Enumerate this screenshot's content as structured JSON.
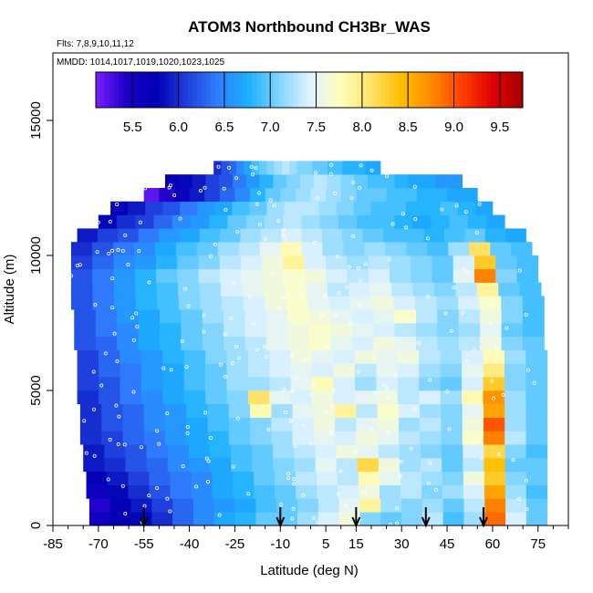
{
  "chart_data": {
    "type": "heatmap",
    "title": "ATOM3 Northbound CH3Br_WAS",
    "subtitle_flights": "Flts: 7,8,9,10,11,12",
    "subtitle_dates": "MMDD: 1014,1017,1019,1020,1023,1025",
    "xlabel": "Latitude (deg N)",
    "ylabel": "Altitude (m)",
    "xlim": [
      -85,
      85
    ],
    "ylim": [
      0,
      17500
    ],
    "x_ticks": [
      -85,
      -70,
      -55,
      -40,
      -25,
      -10,
      5,
      15,
      30,
      45,
      60,
      75
    ],
    "x_tick_labels": [
      "-85",
      "-70",
      "-55",
      "-40",
      "-25",
      "-10",
      "5",
      "15",
      "30",
      "45",
      "60",
      "75"
    ],
    "y_ticks": [
      0,
      5000,
      10000,
      15000
    ],
    "y_tick_labels": [
      "0",
      "5000",
      "10000",
      "15000"
    ],
    "colorbar": {
      "min": 5.1,
      "max": 9.75,
      "ticks": [
        5.5,
        6.0,
        6.5,
        7.0,
        7.5,
        8.0,
        8.5,
        9.0,
        9.5
      ],
      "tick_labels": [
        "5.5",
        "6.0",
        "6.5",
        "7.0",
        "7.5",
        "8.0",
        "8.5",
        "9.0",
        "9.5"
      ],
      "colors": [
        "#7a1fff",
        "#1a00c8",
        "#0000b4",
        "#1f3fdc",
        "#2f7fff",
        "#1ab0ff",
        "#7fd4ff",
        "#dff2ff",
        "#ffffc0",
        "#ffe36a",
        "#ffbf00",
        "#ff8c00",
        "#ff4000",
        "#e00000",
        "#a50000"
      ]
    },
    "altitude_layers": [
      {
        "alt": 0,
        "lat_min": -73,
        "lat_max": 78,
        "values": [
          5.6,
          5.7,
          5.8,
          6.0,
          6.3,
          6.5,
          6.7,
          6.8,
          7.0,
          7.0,
          7.2,
          7.4,
          7.6,
          7.1,
          7.0,
          7.1,
          7.3,
          6.9,
          7.2,
          8.9,
          7.4,
          7.0
        ]
      },
      {
        "alt": 500,
        "lat_min": -73,
        "lat_max": 78,
        "values": [
          5.4,
          5.7,
          5.9,
          6.1,
          6.3,
          6.5,
          6.6,
          6.7,
          6.9,
          7.0,
          7.1,
          7.3,
          7.5,
          7.9,
          7.2,
          7.1,
          7.2,
          7.0,
          7.3,
          8.8,
          7.3,
          7.0
        ]
      },
      {
        "alt": 1000,
        "lat_min": -74,
        "lat_max": 78,
        "values": [
          5.6,
          5.8,
          6.0,
          6.2,
          6.4,
          6.5,
          6.7,
          6.8,
          6.9,
          7.0,
          7.2,
          7.3,
          7.4,
          7.6,
          7.2,
          7.3,
          7.1,
          7.2,
          7.4,
          8.6,
          7.2,
          6.9
        ]
      },
      {
        "alt": 1500,
        "lat_min": -74,
        "lat_max": 78,
        "values": [
          5.7,
          5.9,
          6.1,
          6.3,
          6.4,
          6.5,
          6.7,
          6.8,
          7.0,
          7.1,
          7.3,
          7.4,
          7.3,
          7.8,
          7.5,
          7.3,
          7.2,
          7.1,
          7.6,
          8.3,
          7.1,
          7.0
        ]
      },
      {
        "alt": 2000,
        "lat_min": -75,
        "lat_max": 78,
        "values": [
          5.9,
          6.0,
          6.2,
          6.3,
          6.5,
          6.6,
          6.7,
          6.9,
          7.0,
          7.1,
          7.2,
          7.5,
          7.3,
          8.2,
          7.6,
          7.2,
          7.3,
          7.0,
          7.3,
          8.4,
          7.0,
          7.0
        ]
      },
      {
        "alt": 2500,
        "lat_min": -75,
        "lat_max": 78,
        "values": [
          5.9,
          6.1,
          6.2,
          6.4,
          6.5,
          6.7,
          6.8,
          6.9,
          7.0,
          7.2,
          7.3,
          7.4,
          7.6,
          7.5,
          7.3,
          7.2,
          7.1,
          7.0,
          7.4,
          8.2,
          7.1,
          6.9
        ]
      },
      {
        "alt": 3000,
        "lat_min": -76,
        "lat_max": 78,
        "values": [
          6.0,
          6.1,
          6.3,
          6.4,
          6.6,
          6.7,
          6.8,
          7.0,
          7.1,
          7.2,
          7.4,
          7.5,
          7.4,
          7.6,
          7.5,
          7.3,
          7.2,
          7.1,
          7.7,
          8.8,
          7.3,
          7.0
        ]
      },
      {
        "alt": 3500,
        "lat_min": -76,
        "lat_max": 78,
        "values": [
          6.0,
          6.2,
          6.3,
          6.5,
          6.6,
          6.7,
          6.9,
          7.0,
          7.1,
          7.3,
          7.4,
          7.6,
          7.3,
          7.5,
          7.6,
          7.2,
          7.3,
          7.1,
          7.6,
          9.0,
          7.2,
          7.0
        ]
      },
      {
        "alt": 4000,
        "lat_min": -76,
        "lat_max": 78,
        "values": [
          6.0,
          6.2,
          6.3,
          6.5,
          6.6,
          6.8,
          6.9,
          7.1,
          7.8,
          7.2,
          7.5,
          7.6,
          7.9,
          7.3,
          7.7,
          7.4,
          7.2,
          7.1,
          7.5,
          8.6,
          7.2,
          7.0
        ]
      },
      {
        "alt": 4500,
        "lat_min": -77,
        "lat_max": 78,
        "values": [
          6.0,
          6.2,
          6.4,
          6.5,
          6.7,
          6.8,
          7.0,
          7.1,
          8.1,
          7.5,
          7.4,
          7.6,
          7.4,
          7.5,
          7.6,
          7.3,
          7.4,
          7.2,
          7.8,
          8.7,
          7.2,
          7.0
        ]
      },
      {
        "alt": 5000,
        "lat_min": -77,
        "lat_max": 78,
        "values": [
          6.1,
          6.2,
          6.4,
          6.6,
          6.7,
          6.9,
          7.0,
          7.2,
          7.2,
          7.3,
          7.5,
          7.8,
          7.4,
          7.2,
          7.4,
          7.3,
          7.1,
          7.0,
          7.4,
          8.3,
          7.1,
          7.0
        ]
      },
      {
        "alt": 5500,
        "lat_min": -77,
        "lat_max": 78,
        "values": [
          6.1,
          6.3,
          6.4,
          6.6,
          6.7,
          6.9,
          7.0,
          7.2,
          7.3,
          7.4,
          7.5,
          7.4,
          7.6,
          7.3,
          7.5,
          7.4,
          7.2,
          7.1,
          7.5,
          8.0,
          7.1,
          7.0
        ]
      },
      {
        "alt": 6000,
        "lat_min": -77,
        "lat_max": 78,
        "values": [
          6.1,
          6.3,
          6.5,
          6.6,
          6.8,
          6.9,
          7.1,
          7.2,
          7.3,
          7.4,
          7.6,
          7.5,
          7.4,
          7.6,
          7.5,
          7.6,
          7.3,
          7.2,
          7.4,
          7.8,
          7.2,
          7.0
        ]
      },
      {
        "alt": 6500,
        "lat_min": -78,
        "lat_max": 77,
        "values": [
          6.2,
          6.3,
          6.5,
          6.7,
          6.8,
          7.0,
          7.1,
          7.2,
          7.3,
          7.5,
          7.6,
          7.7,
          7.5,
          7.4,
          7.6,
          7.5,
          7.3,
          7.2,
          7.3,
          7.6,
          7.1,
          7.0
        ]
      },
      {
        "alt": 7000,
        "lat_min": -78,
        "lat_max": 77,
        "values": [
          6.2,
          6.4,
          6.5,
          6.7,
          6.8,
          7.0,
          7.1,
          7.3,
          7.4,
          7.5,
          7.6,
          7.7,
          7.6,
          7.5,
          7.4,
          7.3,
          7.2,
          7.1,
          7.2,
          7.5,
          7.0,
          6.9
        ]
      },
      {
        "alt": 7500,
        "lat_min": -78,
        "lat_max": 77,
        "values": [
          6.2,
          6.4,
          6.6,
          6.7,
          6.9,
          7.0,
          7.2,
          7.3,
          7.4,
          7.5,
          7.7,
          7.6,
          7.5,
          7.4,
          7.5,
          7.7,
          7.3,
          7.1,
          7.3,
          7.6,
          7.1,
          6.9
        ]
      },
      {
        "alt": 8000,
        "lat_min": -79,
        "lat_max": 77,
        "values": [
          6.2,
          6.4,
          6.6,
          6.8,
          6.9,
          7.1,
          7.2,
          7.3,
          7.4,
          7.6,
          7.7,
          7.5,
          7.4,
          7.5,
          7.6,
          7.4,
          7.3,
          7.2,
          7.4,
          7.7,
          7.1,
          6.9
        ]
      },
      {
        "alt": 8500,
        "lat_min": -79,
        "lat_max": 76,
        "values": [
          6.2,
          6.4,
          6.6,
          6.8,
          6.9,
          7.1,
          7.2,
          7.4,
          7.5,
          7.6,
          7.7,
          7.5,
          7.3,
          7.4,
          7.5,
          7.3,
          7.2,
          7.1,
          7.3,
          7.9,
          7.0,
          6.9
        ]
      },
      {
        "alt": 9000,
        "lat_min": -79,
        "lat_max": 75,
        "values": [
          6.2,
          6.4,
          6.6,
          6.8,
          7.0,
          7.1,
          7.3,
          7.4,
          7.5,
          7.6,
          7.7,
          7.6,
          7.4,
          7.3,
          7.4,
          7.2,
          7.1,
          7.0,
          7.5,
          8.8,
          7.1,
          6.9
        ]
      },
      {
        "alt": 9500,
        "lat_min": -79,
        "lat_max": 75,
        "values": [
          6.1,
          6.3,
          6.5,
          6.6,
          6.8,
          7.0,
          7.1,
          7.3,
          7.4,
          7.6,
          7.9,
          7.4,
          7.3,
          7.2,
          7.3,
          7.2,
          7.1,
          7.0,
          7.4,
          8.3,
          7.0,
          6.9
        ]
      },
      {
        "alt": 10000,
        "lat_min": -79,
        "lat_max": 73,
        "values": [
          6.0,
          6.2,
          6.4,
          6.5,
          6.7,
          6.9,
          7.0,
          7.2,
          7.3,
          7.5,
          7.8,
          7.4,
          7.2,
          7.1,
          7.2,
          7.1,
          7.0,
          6.9,
          7.2,
          8.1,
          7.0,
          6.9
        ]
      },
      {
        "alt": 10500,
        "lat_min": -77,
        "lat_max": 71,
        "values": [
          5.9,
          6.1,
          6.2,
          6.4,
          6.6,
          6.7,
          6.9,
          7.0,
          7.2,
          7.3,
          7.4,
          7.3,
          7.2,
          7.1,
          7.0,
          6.9,
          6.9,
          6.8,
          6.9,
          7.0,
          6.8,
          6.7
        ]
      },
      {
        "alt": 11000,
        "lat_min": -70,
        "lat_max": 64,
        "values": [
          5.8,
          6.0,
          6.1,
          6.3,
          6.5,
          6.6,
          6.8,
          7.0,
          7.1,
          7.2,
          7.3,
          7.2,
          7.1,
          7.0,
          6.9,
          6.9,
          6.8,
          6.7,
          6.8,
          6.9,
          6.8,
          6.7
        ]
      },
      {
        "alt": 11500,
        "lat_min": -66,
        "lat_max": 60,
        "values": [
          5.7,
          5.9,
          6.1,
          6.2,
          6.4,
          6.6,
          6.7,
          6.9,
          7.0,
          7.2,
          7.3,
          7.3,
          7.2,
          7.1,
          7.0,
          6.9,
          6.9,
          6.8,
          6.8,
          6.9,
          6.8,
          6.7
        ]
      },
      {
        "alt": 12000,
        "lat_min": -55,
        "lat_max": 55,
        "values": [
          5.2,
          5.4,
          5.6,
          5.9,
          6.1,
          6.3,
          6.5,
          6.8,
          7.0,
          7.1,
          7.2,
          7.3,
          7.2,
          7.1,
          7.0,
          7.0,
          6.9,
          6.9,
          6.8,
          6.8,
          6.7,
          6.7
        ]
      },
      {
        "alt": 12500,
        "lat_min": -48,
        "lat_max": 50,
        "values": [
          5.7,
          5.8,
          5.9,
          6.1,
          6.2,
          6.4,
          6.6,
          6.8,
          7.0,
          7.1,
          7.2,
          7.3,
          7.2,
          7.1,
          7.0,
          6.9,
          6.9,
          6.8,
          6.7,
          6.7,
          6.6,
          6.6
        ]
      },
      {
        "alt": 13000,
        "lat_min": -32,
        "lat_max": 23,
        "values": [
          6.0,
          6.2,
          6.3,
          6.5,
          6.7,
          6.9,
          7.0,
          7.1,
          7.2,
          7.3,
          7.2,
          7.1,
          7.1,
          7.0,
          7.0,
          6.9,
          6.9,
          6.8,
          6.8,
          6.8,
          6.7,
          6.7
        ]
      }
    ],
    "annotated_latitudes": [
      -55,
      -10,
      15,
      38,
      57
    ]
  }
}
